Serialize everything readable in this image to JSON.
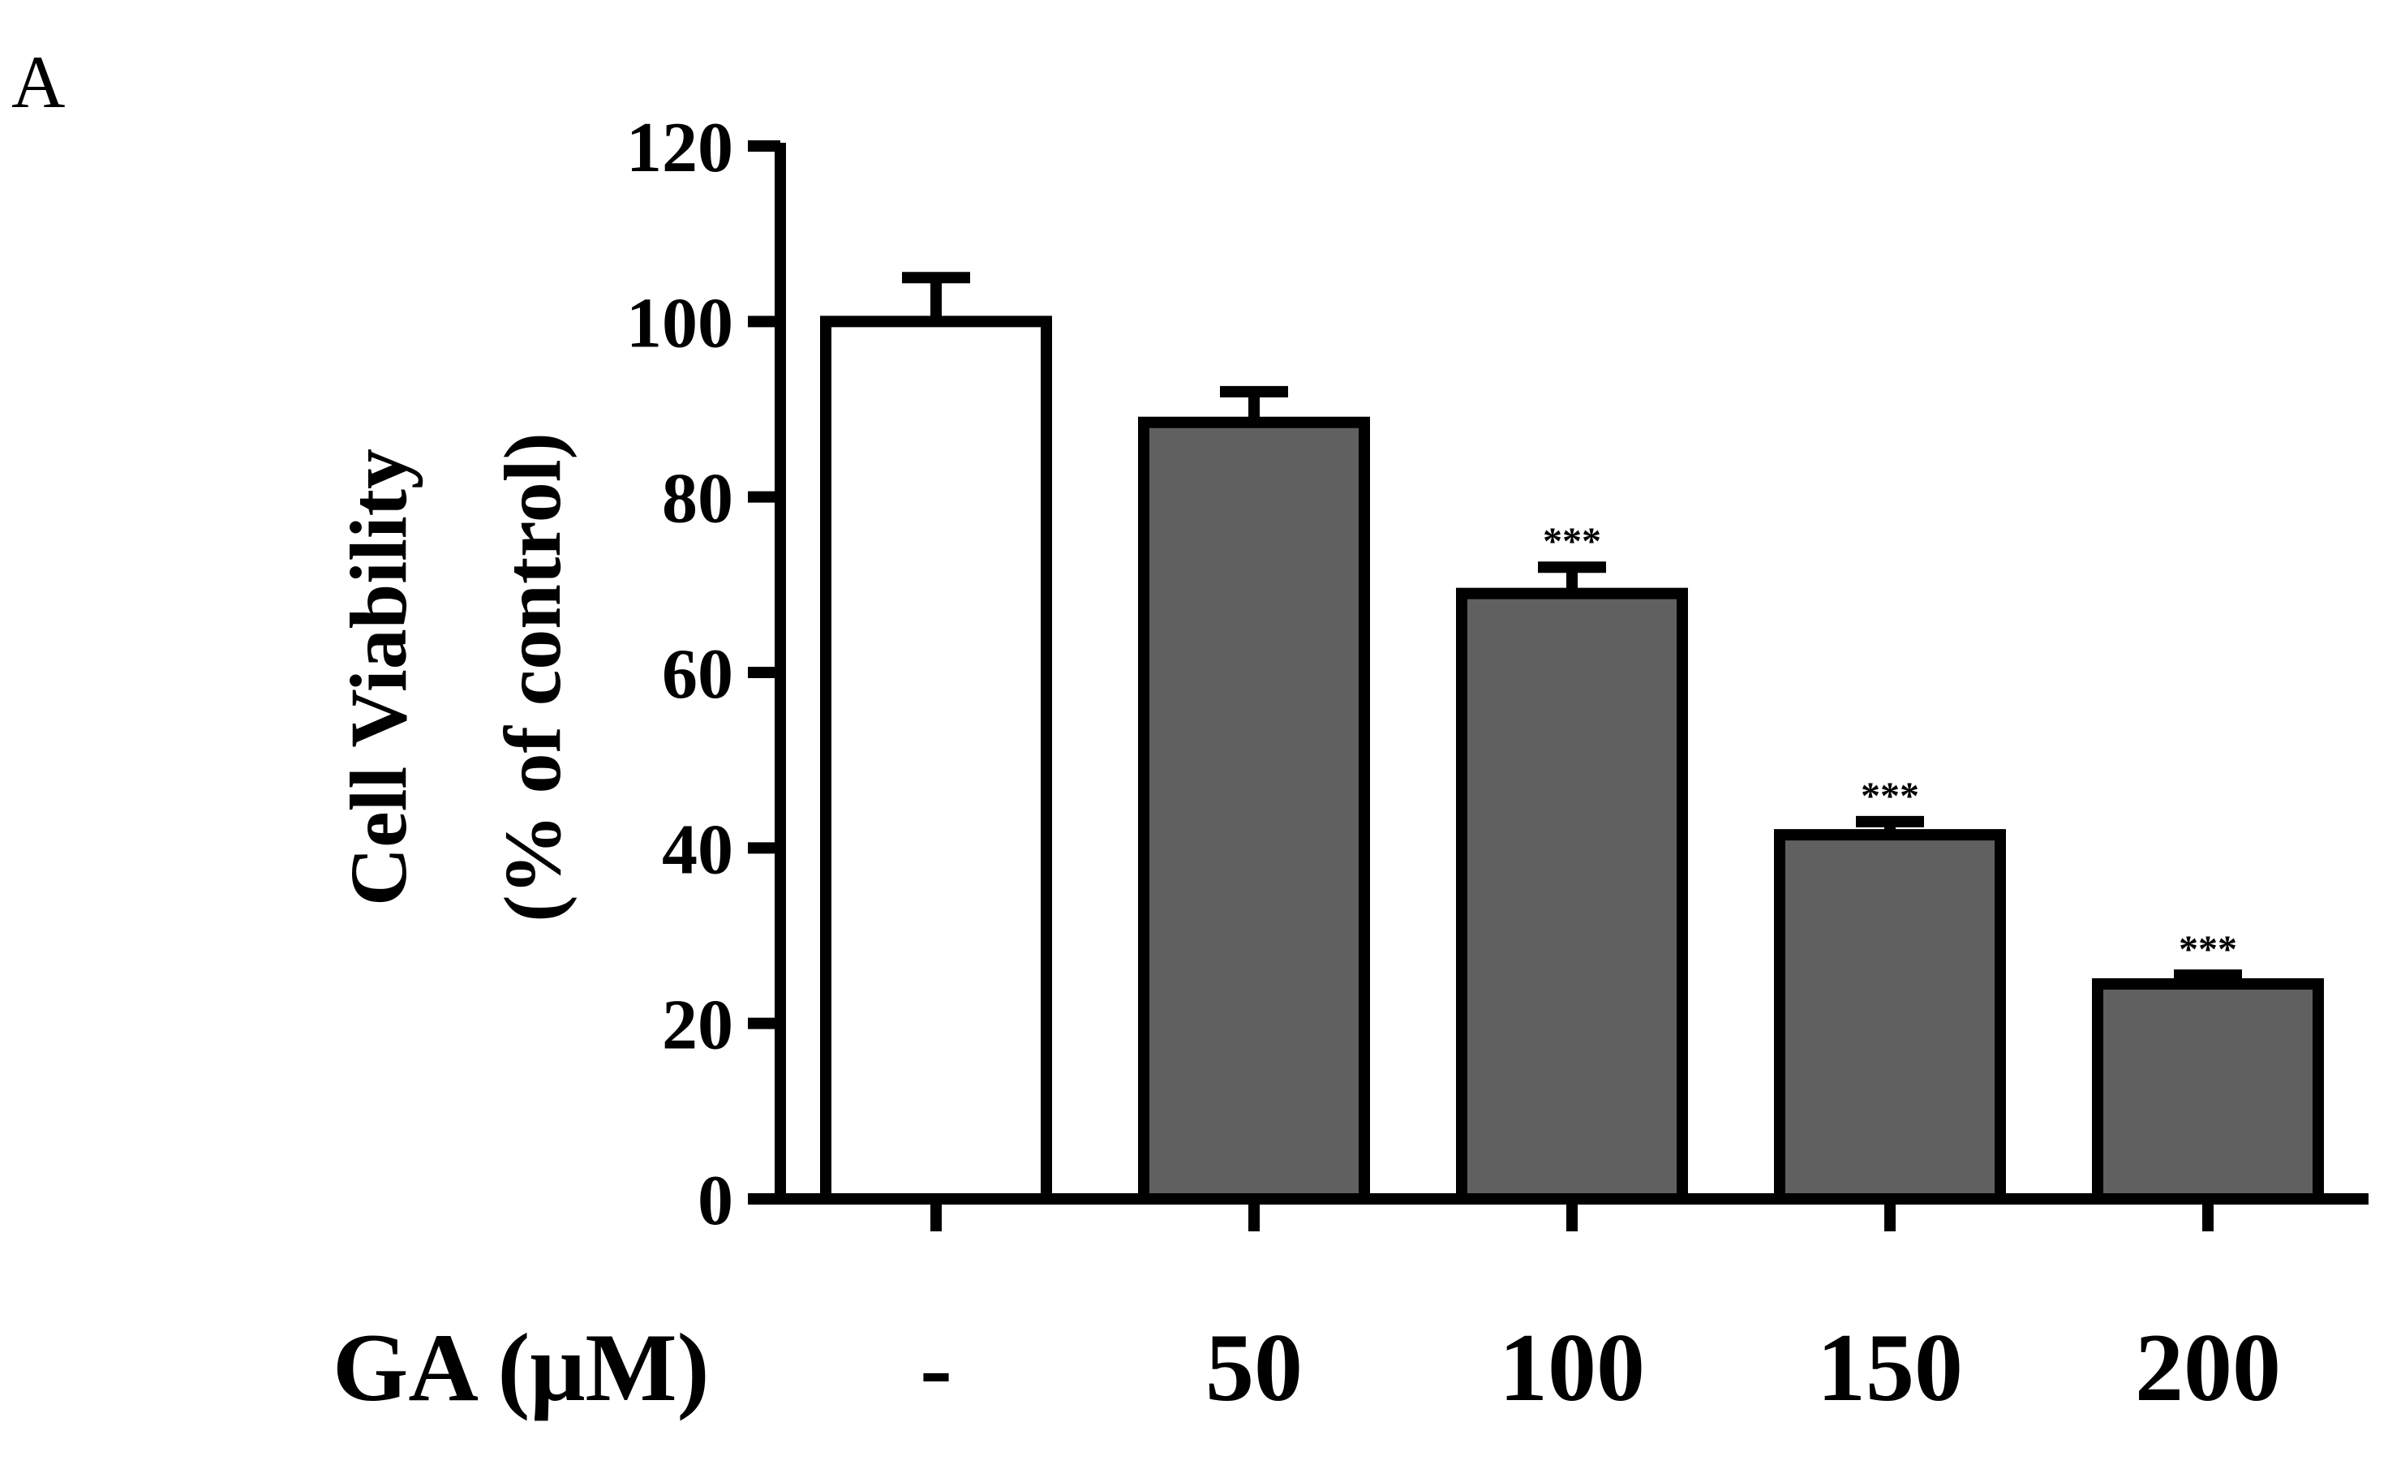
{
  "panel_label": "A",
  "chart_data": {
    "type": "bar",
    "ylabel_line1": "Cell Viability",
    "ylabel_line2": "(% of control)",
    "x_axis_title": "GA (μM)",
    "ylim": [
      0,
      120
    ],
    "yticks": [
      0,
      20,
      40,
      60,
      80,
      100,
      120
    ],
    "grid": false,
    "legend": "none",
    "categories": [
      "-",
      "50",
      "100",
      "150",
      "200"
    ],
    "values": [
      100,
      88.5,
      69,
      41.5,
      24.5
    ],
    "errors": [
      5,
      3.5,
      3,
      1.5,
      1
    ],
    "significance": [
      "",
      "",
      "***",
      "***",
      "***"
    ],
    "fill_colors": [
      "#ffffff",
      "#606060",
      "#606060",
      "#606060",
      "#606060"
    ],
    "stroke_color": "#000000"
  }
}
